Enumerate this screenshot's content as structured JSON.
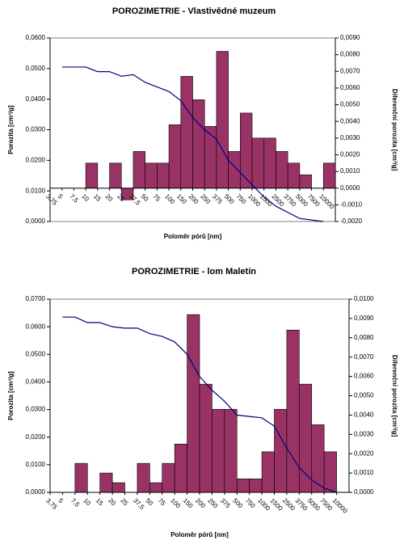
{
  "chart_data": [
    {
      "type": "combo",
      "title": "POROZIMETRIE - Vlastivědné muzeum",
      "x_label": "Poloměr pórů [nm]",
      "y_label": "Porozita  [cm³/g]",
      "y2_label": "Diferenční porozita [cm³/g]",
      "categories": [
        "3,75",
        "5",
        "7,5",
        "10",
        "15",
        "20",
        "25",
        "37,5",
        "50",
        "75",
        "100",
        "150",
        "200",
        "250",
        "375",
        "500",
        "750",
        "1000",
        "1500",
        "2500",
        "3750",
        "5000",
        "7500",
        "10000"
      ],
      "ylim": [
        0,
        0.06
      ],
      "yticks": [
        {
          "value": 0,
          "label": "0,0000"
        },
        {
          "value": 0.01,
          "label": "0,0100"
        },
        {
          "value": 0.02,
          "label": "0,0200"
        },
        {
          "value": 0.03,
          "label": "0,0300"
        },
        {
          "value": 0.04,
          "label": "0,0400"
        },
        {
          "value": 0.05,
          "label": "0,0500"
        },
        {
          "value": 0.06,
          "label": "0,0600"
        }
      ],
      "y2lim": [
        -0.002,
        0.009
      ],
      "y2ticks": [
        {
          "value": -0.002,
          "label": "-0,0020"
        },
        {
          "value": -0.001,
          "label": "-0,0010"
        },
        {
          "value": 0,
          "label": "0,0000"
        },
        {
          "value": 0.001,
          "label": "0,0010"
        },
        {
          "value": 0.002,
          "label": "0,0020"
        },
        {
          "value": 0.003,
          "label": "0,0030"
        },
        {
          "value": 0.004,
          "label": "0,0040"
        },
        {
          "value": 0.005,
          "label": "0,0050"
        },
        {
          "value": 0.006,
          "label": "0,0060"
        },
        {
          "value": 0.007,
          "label": "0,0070"
        },
        {
          "value": 0.008,
          "label": "0,0080"
        },
        {
          "value": 0.009,
          "label": "0,0090"
        }
      ],
      "series": [
        {
          "type": "bar",
          "axis": "y2",
          "color": "#993366",
          "values": [
            0,
            0,
            0,
            0.0015,
            0,
            0.0015,
            -0.0007,
            0.0022,
            0.0015,
            0.0015,
            0.0038,
            0.0067,
            0.0053,
            0.0037,
            0.0082,
            0.0022,
            0.0045,
            0.003,
            0.003,
            0.0022,
            0.0015,
            0.0008,
            0,
            0.0015
          ]
        },
        {
          "type": "line",
          "color": "#000080",
          "values": [
            null,
            0.0505,
            0.0505,
            0.0505,
            0.049,
            0.049,
            0.0475,
            0.048,
            0.0455,
            0.044,
            0.0425,
            0.0395,
            0.034,
            0.03,
            0.027,
            0.02,
            0.016,
            0.012,
            0.008,
            0.005,
            0.003,
            0.001,
            0.0005,
            0
          ]
        }
      ]
    },
    {
      "type": "combo",
      "title": "POROZIMETRIE -  lom Maletín",
      "x_label": "Poloměr pórů [nm]",
      "y_label": "Porozita  [cm³/g]",
      "y2_label": "Diferenční porozita [cm³/g]",
      "categories": [
        "3,75",
        "5",
        "7,5",
        "10",
        "15",
        "20",
        "25",
        "37,5",
        "50",
        "75",
        "100",
        "150",
        "200",
        "250",
        "375",
        "500",
        "750",
        "1000",
        "1500",
        "2500",
        "3750",
        "5000",
        "7500",
        "10000"
      ],
      "ylim": [
        0,
        0.07
      ],
      "yticks": [
        {
          "value": 0,
          "label": "0,0000"
        },
        {
          "value": 0.01,
          "label": "0,0100"
        },
        {
          "value": 0.02,
          "label": "0,0200"
        },
        {
          "value": 0.03,
          "label": "0,0300"
        },
        {
          "value": 0.04,
          "label": "0,0400"
        },
        {
          "value": 0.05,
          "label": "0,0500"
        },
        {
          "value": 0.06,
          "label": "0,0600"
        },
        {
          "value": 0.07,
          "label": "0,0700"
        }
      ],
      "y2lim": [
        0,
        0.01
      ],
      "y2ticks": [
        {
          "value": 0,
          "label": "0,0000"
        },
        {
          "value": 0.001,
          "label": "0,0010"
        },
        {
          "value": 0.002,
          "label": "0,0020"
        },
        {
          "value": 0.003,
          "label": "0,0030"
        },
        {
          "value": 0.004,
          "label": "0,0040"
        },
        {
          "value": 0.005,
          "label": "0,0050"
        },
        {
          "value": 0.006,
          "label": "0,0060"
        },
        {
          "value": 0.007,
          "label": "0,0070"
        },
        {
          "value": 0.008,
          "label": "0,0080"
        },
        {
          "value": 0.009,
          "label": "0,0090"
        },
        {
          "value": 0.01,
          "label": "0,0100"
        }
      ],
      "series": [
        {
          "type": "bar",
          "axis": "y2",
          "color": "#993366",
          "values": [
            0,
            0,
            0.0015,
            0,
            0.001,
            0.0005,
            0,
            0.0015,
            0.0005,
            0.0015,
            0.0025,
            0.0092,
            0.0056,
            0.0043,
            0.0043,
            0.0007,
            0.0007,
            0.0021,
            0.0043,
            0.0084,
            0.0056,
            0.0035,
            0.0021,
            0
          ]
        },
        {
          "type": "line",
          "color": "#000080",
          "values": [
            null,
            0.0635,
            0.0635,
            0.0615,
            0.0615,
            0.06,
            0.0595,
            0.0595,
            0.0575,
            0.0565,
            0.0545,
            0.05,
            0.042,
            0.037,
            0.033,
            0.028,
            0.0275,
            0.027,
            0.024,
            0.016,
            0.009,
            0.0045,
            0.0015,
            0
          ]
        }
      ]
    }
  ]
}
